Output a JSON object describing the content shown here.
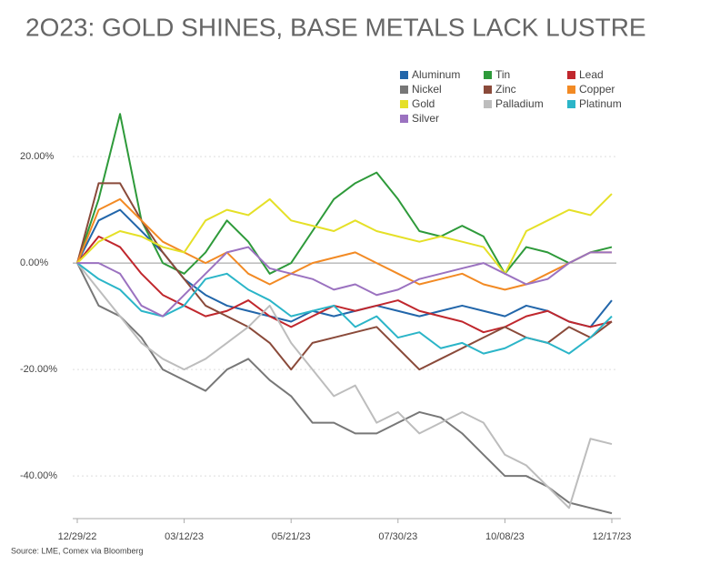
{
  "chart_data": {
    "type": "line",
    "title": "2O23: GOLD SHINES, BASE METALS LACK LUSTRE",
    "source": "Source: LME, Comex via Bloomberg",
    "categories": [
      "12/29/22",
      null,
      null,
      null,
      null,
      "03/12/23",
      null,
      null,
      null,
      null,
      "05/21/23",
      null,
      null,
      null,
      null,
      "07/30/23",
      null,
      null,
      null,
      null,
      "10/08/23",
      null,
      null,
      null,
      null,
      "12/17/23"
    ],
    "ylim": [
      -48,
      33
    ],
    "yticks": [
      {
        "value": 20,
        "label": "20.00%"
      },
      {
        "value": 0,
        "label": "0.00%"
      },
      {
        "value": -20,
        "label": "-20.00%"
      },
      {
        "value": -40,
        "label": "-40.00%"
      }
    ],
    "grid": true,
    "series": [
      {
        "name": "Aluminum",
        "color": "#2266aa",
        "values": [
          0,
          8,
          10,
          6,
          2,
          -3,
          -6,
          -8,
          -9,
          -10,
          -11,
          -9,
          -10,
          -9,
          -8,
          -9,
          -10,
          -9,
          -8,
          -9,
          -10,
          -8,
          -9,
          -11,
          -12,
          -7
        ]
      },
      {
        "name": "Tin",
        "color": "#2e9a3a",
        "values": [
          0,
          12,
          28,
          8,
          0,
          -2,
          2,
          8,
          4,
          -2,
          0,
          6,
          12,
          15,
          17,
          12,
          6,
          5,
          7,
          5,
          -2,
          3,
          2,
          0,
          2,
          3
        ]
      },
      {
        "name": "Lead",
        "color": "#c0272d",
        "values": [
          0,
          5,
          3,
          -2,
          -6,
          -8,
          -10,
          -9,
          -7,
          -10,
          -12,
          -10,
          -8,
          -9,
          -8,
          -7,
          -9,
          -10,
          -11,
          -13,
          -12,
          -10,
          -9,
          -11,
          -12,
          -11
        ]
      },
      {
        "name": "Nickel",
        "color": "#777777",
        "values": [
          0,
          -8,
          -10,
          -14,
          -20,
          -22,
          -24,
          -20,
          -18,
          -22,
          -25,
          -30,
          -30,
          -32,
          -32,
          -30,
          -28,
          -29,
          -32,
          -36,
          -40,
          -40,
          -42,
          -45,
          -46,
          -47
        ]
      },
      {
        "name": "Zinc",
        "color": "#8a4a3a",
        "values": [
          0,
          15,
          15,
          8,
          2,
          -3,
          -8,
          -10,
          -12,
          -15,
          -20,
          -15,
          -14,
          -13,
          -12,
          -16,
          -20,
          -18,
          -16,
          -14,
          -12,
          -14,
          -15,
          -12,
          -14,
          -11
        ]
      },
      {
        "name": "Copper",
        "color": "#f28a24",
        "values": [
          0,
          10,
          12,
          8,
          4,
          2,
          0,
          2,
          -2,
          -4,
          -2,
          0,
          1,
          2,
          0,
          -2,
          -4,
          -3,
          -2,
          -4,
          -5,
          -4,
          -2,
          0,
          2,
          2
        ]
      },
      {
        "name": "Gold",
        "color": "#e5e027",
        "values": [
          0,
          4,
          6,
          5,
          3,
          2,
          8,
          10,
          9,
          12,
          8,
          7,
          6,
          8,
          6,
          5,
          4,
          5,
          4,
          3,
          -2,
          6,
          8,
          10,
          9,
          13
        ]
      },
      {
        "name": "Palladium",
        "color": "#bdbdbd",
        "values": [
          0,
          -5,
          -10,
          -15,
          -18,
          -20,
          -18,
          -15,
          -12,
          -8,
          -15,
          -20,
          -25,
          -23,
          -30,
          -28,
          -32,
          -30,
          -28,
          -30,
          -36,
          -38,
          -42,
          -46,
          -33,
          -34
        ]
      },
      {
        "name": "Platinum",
        "color": "#2bb5c8",
        "values": [
          0,
          -3,
          -5,
          -9,
          -10,
          -8,
          -3,
          -2,
          -5,
          -7,
          -10,
          -9,
          -8,
          -12,
          -10,
          -14,
          -13,
          -16,
          -15,
          -17,
          -16,
          -14,
          -15,
          -17,
          -14,
          -10
        ]
      },
      {
        "name": "Silver",
        "color": "#9b72c0",
        "values": [
          0,
          0,
          -2,
          -8,
          -10,
          -6,
          -2,
          2,
          3,
          -1,
          -2,
          -3,
          -5,
          -4,
          -6,
          -5,
          -3,
          -2,
          -1,
          0,
          -2,
          -4,
          -3,
          0,
          2,
          2
        ]
      }
    ]
  }
}
